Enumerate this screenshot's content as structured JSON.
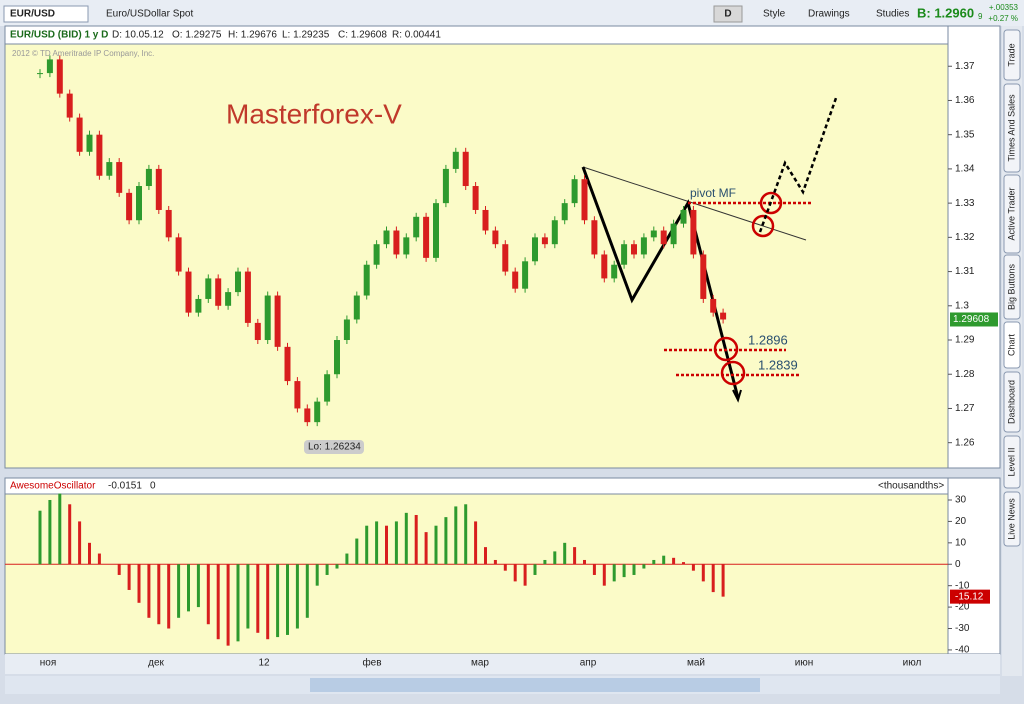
{
  "toolbar": {
    "symbol": "EUR/USD",
    "description": "Euro/USDollar Spot",
    "period": "D",
    "buttons": [
      "Style",
      "Drawings",
      "Studies"
    ],
    "bid": "B: 1.2960",
    "bid_digit": "9",
    "change": "+.00353",
    "change_pct": "+0.27 %"
  },
  "side_tabs": [
    "Trade",
    "Times And Sales",
    "Active Trader",
    "Big Buttons",
    "Chart",
    "Dashboard",
    "Level II",
    "Live News"
  ],
  "chart_data": [
    {
      "type": "candlestick",
      "header": [
        "EUR/USD (BID) 1 y D",
        "D: 10.05.12",
        "O: 1.29275",
        "H: 1.29676",
        "L: 1.29235",
        "C: 1.29608",
        "R: 0.00441"
      ],
      "copyright": "2012 © TD Ameritrade IP Company, Inc.",
      "annotations": [
        "Masterforex-V",
        "pivot MF",
        "1.2896",
        "1.2839",
        "Lo: 1.26234"
      ],
      "last_label": "1.29608",
      "x_labels": [
        "ноя",
        "дек",
        "12",
        "фев",
        "мар",
        "апр",
        "май",
        "июн",
        "июл"
      ],
      "closes": [
        1.368,
        1.372,
        1.362,
        1.355,
        1.345,
        1.35,
        1.338,
        1.342,
        1.333,
        1.325,
        1.335,
        1.34,
        1.328,
        1.32,
        1.31,
        1.298,
        1.302,
        1.308,
        1.3,
        1.304,
        1.31,
        1.295,
        1.29,
        1.303,
        1.288,
        1.278,
        1.27,
        1.266,
        1.272,
        1.28,
        1.29,
        1.296,
        1.303,
        1.312,
        1.318,
        1.322,
        1.315,
        1.32,
        1.326,
        1.314,
        1.33,
        1.34,
        1.345,
        1.335,
        1.328,
        1.322,
        1.318,
        1.31,
        1.305,
        1.313,
        1.32,
        1.318,
        1.325,
        1.33,
        1.337,
        1.325,
        1.315,
        1.308,
        1.312,
        1.318,
        1.315,
        1.32,
        1.322,
        1.318,
        1.324,
        1.328,
        1.315,
        1.302,
        1.298,
        1.296
      ],
      "up_color": "#2e9a2e",
      "down_color": "#d81e1e",
      "ylim": [
        1.2526,
        1.3765
      ],
      "yticks": [
        1.26,
        1.27,
        1.28,
        1.29,
        1.3,
        1.31,
        1.32,
        1.33,
        1.34,
        1.35,
        1.36,
        1.37
      ]
    },
    {
      "type": "histogram",
      "header": [
        "AwesomeOscillator",
        "-0.0151",
        "0",
        "<thousandths>"
      ],
      "last_label": "-15.12",
      "values": [
        25,
        30,
        33,
        28,
        20,
        10,
        5,
        0,
        -5,
        -12,
        -18,
        -25,
        -28,
        -30,
        -25,
        -22,
        -20,
        -28,
        -35,
        -38,
        -36,
        -30,
        -32,
        -35,
        -34,
        -33,
        -30,
        -25,
        -10,
        -5,
        -2,
        5,
        12,
        18,
        20,
        18,
        20,
        24,
        23,
        15,
        18,
        22,
        27,
        28,
        20,
        8,
        2,
        -3,
        -8,
        -10,
        -5,
        2,
        6,
        10,
        8,
        2,
        -5,
        -10,
        -8,
        -6,
        -5,
        -2,
        2,
        4,
        3,
        1,
        -3,
        -8,
        -13,
        -15.12
      ],
      "up_color": "#2e9a2e",
      "down_color": "#d81e1e",
      "ylim": [
        -41.9,
        32.8
      ],
      "yticks": [
        -40,
        -30,
        -20,
        -10,
        0,
        10,
        20,
        30
      ]
    }
  ]
}
